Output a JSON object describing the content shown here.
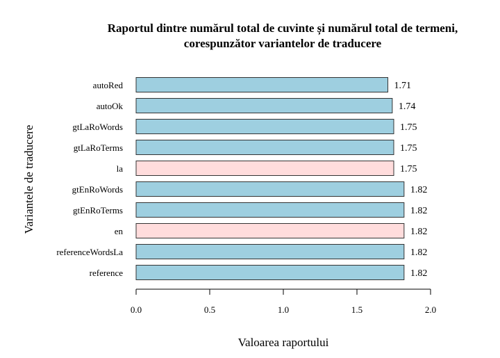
{
  "chart_data": {
    "type": "bar",
    "orientation": "horizontal",
    "title": "Raportul dintre numărul total de cuvinte și numărul total de termeni,",
    "subtitle": "corespunzător variantelor de traducere",
    "xlabel": "Valoarea raportului",
    "ylabel": "Variantele de traducere",
    "xlim": [
      0,
      2.0
    ],
    "xticks": [
      "0.0",
      "0.5",
      "1.0",
      "1.5",
      "2.0"
    ],
    "grid": false,
    "colors": {
      "default": "#9ecfe0",
      "highlight": "#ffdcdc",
      "edge": "#333333"
    },
    "categories": [
      "autoRed",
      "autoOk",
      "gtLaRoWords",
      "gtLaRoTerms",
      "la",
      "gtEnRoWords",
      "gtEnRoTerms",
      "en",
      "referenceWordsLa",
      "reference"
    ],
    "values": [
      1.71,
      1.74,
      1.75,
      1.75,
      1.75,
      1.82,
      1.82,
      1.82,
      1.82,
      1.82
    ],
    "value_labels": [
      "1.71",
      "1.74",
      "1.75",
      "1.75",
      "1.75",
      "1.82",
      "1.82",
      "1.82",
      "1.82",
      "1.82"
    ],
    "highlight": [
      "la",
      "en"
    ]
  }
}
